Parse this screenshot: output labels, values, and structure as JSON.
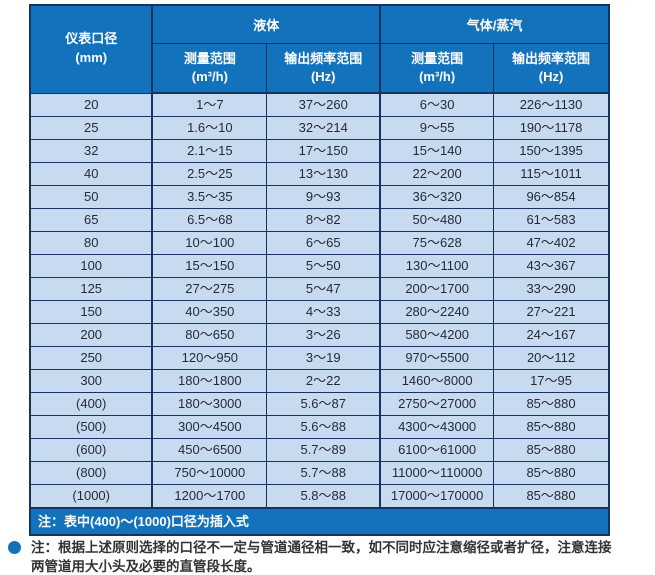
{
  "colors": {
    "header_blue": "#1272BC",
    "row_bg": "#C8DAEF",
    "border": "#17335F",
    "data_text": "#232B38",
    "note_text": "#333333"
  },
  "table": {
    "diameter_header": {
      "line1": "仪表口径",
      "line2": "(mm)"
    },
    "groups": [
      {
        "label": "液体"
      },
      {
        "label": "气体/蒸汽"
      }
    ],
    "subheaders": [
      {
        "line1": "测量范围",
        "line2": "(m³/h)"
      },
      {
        "line1": "输出频率范围",
        "line2": "(Hz)"
      },
      {
        "line1": "测量范围",
        "line2": "(m³/h)"
      },
      {
        "line1": "输出频率范围",
        "line2": "(Hz)"
      }
    ],
    "rows": [
      [
        "20",
        "1～7",
        "37～260",
        "6～30",
        "226～1130"
      ],
      [
        "25",
        "1.6～10",
        "32～214",
        "9～55",
        "190～1178"
      ],
      [
        "32",
        "2.1～15",
        "17～150",
        "15～140",
        "150～1395"
      ],
      [
        "40",
        "2.5～25",
        "13～130",
        "22～200",
        "115～1011"
      ],
      [
        "50",
        "3.5～35",
        "9～93",
        "36～320",
        "96～854"
      ],
      [
        "65",
        "6.5～68",
        "8～82",
        "50～480",
        "61～583"
      ],
      [
        "80",
        "10～100",
        "6～65",
        "75～628",
        "47～402"
      ],
      [
        "100",
        "15～150",
        "5～50",
        "130～1100",
        "43～367"
      ],
      [
        "125",
        "27～275",
        "5～47",
        "200～1700",
        "33～290"
      ],
      [
        "150",
        "40～350",
        "4～33",
        "280～2240",
        "27～221"
      ],
      [
        "200",
        "80～650",
        "3～26",
        "580～4200",
        "24～167"
      ],
      [
        "250",
        "120～950",
        "3～19",
        "970～5500",
        "20～112"
      ],
      [
        "300",
        "180～1800",
        "2～22",
        "1460～8000",
        "17～95"
      ],
      [
        "(400)",
        "180～3000",
        "5.6～87",
        "2750～27000",
        "85～880"
      ],
      [
        "(500)",
        "300～4500",
        "5.6～88",
        "4300～43000",
        "85～880"
      ],
      [
        "(600)",
        "450～6500",
        "5.7～89",
        "6100～61000",
        "85～880"
      ],
      [
        "(800)",
        "750～10000",
        "5.7～88",
        "11000～110000",
        "85～880"
      ],
      [
        "(1000)",
        "1200～1700",
        "5.8～88",
        "17000～170000",
        "85～880"
      ]
    ],
    "footer_note": "注：表中(400)～(1000)口径为插入式"
  },
  "bottom_note": {
    "lines": [
      "注：根据上述原则选择的口径不一定与管道通径相一致，如不同时应注意缩径或者扩径，注意连接",
      "两管道用大小头及必要的直管段长度。"
    ]
  }
}
